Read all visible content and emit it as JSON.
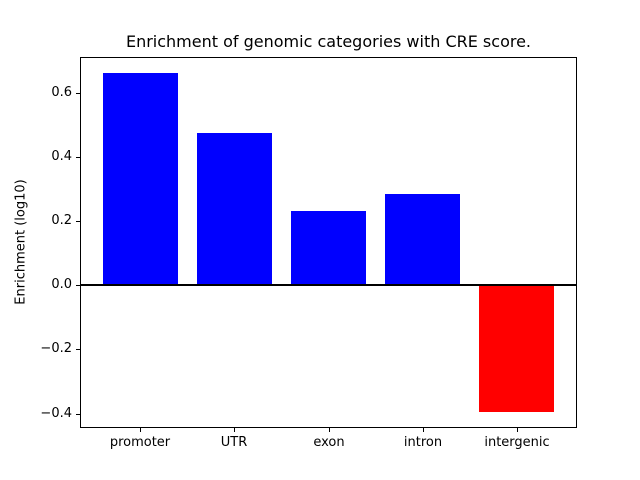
{
  "figure": {
    "title": "Enrichment of genomic categories with CRE score.",
    "ylabel": "Enrichment (log10)"
  },
  "chart_data": {
    "type": "bar",
    "title": "Enrichment of genomic categories with CRE score.",
    "xlabel": "",
    "ylabel": "Enrichment (log10)",
    "categories": [
      "promoter",
      "UTR",
      "exon",
      "intron",
      "intergenic"
    ],
    "values": [
      0.66,
      0.475,
      0.23,
      0.285,
      -0.395
    ],
    "positive_color": "#0000ff",
    "negative_color": "#ff0000",
    "axis_color": "#000000",
    "background_color": "#ffffff",
    "zero_line": true,
    "grid": false,
    "legend": null,
    "bar_width": 0.8,
    "xlim": [
      -0.64,
      4.64
    ],
    "ylim": [
      -0.4444,
      0.7106
    ],
    "yticks": {
      "values": [
        0.6,
        0.4,
        0.2,
        0.0,
        -0.2,
        -0.4
      ],
      "labels": [
        "0.6",
        "0.4",
        "0.2",
        "0.0",
        "−0.2",
        "−0.4"
      ]
    }
  }
}
